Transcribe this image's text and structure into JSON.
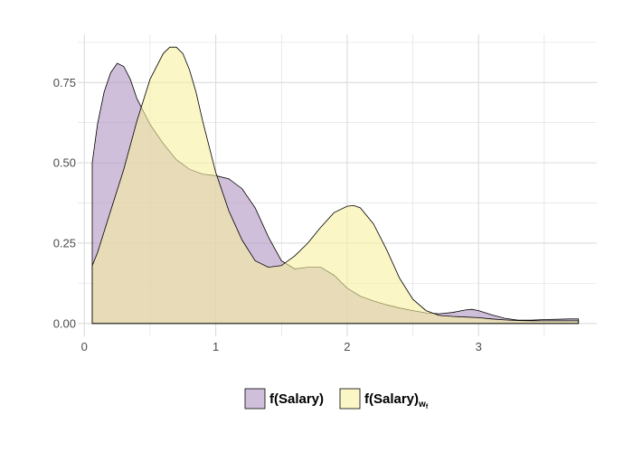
{
  "chart_data": {
    "type": "area",
    "title": "",
    "xlabel": "",
    "ylabel": "",
    "xlim": [
      -0.05,
      3.9
    ],
    "ylim": [
      -0.04,
      0.9
    ],
    "x_ticks": [
      0,
      1,
      2,
      3
    ],
    "x_tick_labels": [
      "0",
      "1",
      "2",
      "3"
    ],
    "y_ticks": [
      0.0,
      0.25,
      0.5,
      0.75
    ],
    "y_tick_labels": [
      "0.00",
      "0.25",
      "0.50",
      "0.75"
    ],
    "grid": true,
    "legend_position": "bottom",
    "series": [
      {
        "name": "f(Salary)",
        "legend_sub": "",
        "fill": "#b195c1",
        "x": [
          0.06,
          0.1,
          0.15,
          0.2,
          0.25,
          0.3,
          0.35,
          0.4,
          0.5,
          0.6,
          0.7,
          0.8,
          0.9,
          1.0,
          1.1,
          1.2,
          1.3,
          1.4,
          1.5,
          1.6,
          1.7,
          1.8,
          1.9,
          2.0,
          2.1,
          2.2,
          2.3,
          2.4,
          2.5,
          2.6,
          2.7,
          2.8,
          2.9,
          2.95,
          3.0,
          3.1,
          3.2,
          3.3,
          3.4,
          3.5,
          3.6,
          3.7,
          3.76
        ],
        "values": [
          0.5,
          0.62,
          0.72,
          0.78,
          0.81,
          0.8,
          0.76,
          0.7,
          0.62,
          0.56,
          0.51,
          0.48,
          0.465,
          0.46,
          0.45,
          0.42,
          0.36,
          0.27,
          0.195,
          0.17,
          0.175,
          0.175,
          0.15,
          0.11,
          0.085,
          0.07,
          0.058,
          0.048,
          0.04,
          0.033,
          0.03,
          0.034,
          0.042,
          0.044,
          0.04,
          0.027,
          0.016,
          0.01,
          0.01,
          0.012,
          0.013,
          0.014,
          0.014
        ]
      },
      {
        "name": "f(Salary)",
        "legend_sub": "w",
        "legend_sub2": "f",
        "fill": "#f7f0a0",
        "x": [
          0.06,
          0.1,
          0.2,
          0.3,
          0.4,
          0.5,
          0.6,
          0.65,
          0.7,
          0.75,
          0.8,
          0.85,
          0.9,
          1.0,
          1.1,
          1.2,
          1.3,
          1.4,
          1.5,
          1.6,
          1.7,
          1.8,
          1.9,
          2.0,
          2.05,
          2.1,
          2.2,
          2.3,
          2.4,
          2.5,
          2.6,
          2.7,
          2.8,
          2.9,
          3.0,
          3.1,
          3.2,
          3.3,
          3.4,
          3.5,
          3.6,
          3.7,
          3.76
        ],
        "values": [
          0.18,
          0.22,
          0.35,
          0.48,
          0.63,
          0.76,
          0.84,
          0.86,
          0.86,
          0.84,
          0.79,
          0.72,
          0.63,
          0.47,
          0.35,
          0.26,
          0.195,
          0.175,
          0.18,
          0.21,
          0.25,
          0.3,
          0.345,
          0.365,
          0.367,
          0.36,
          0.31,
          0.23,
          0.14,
          0.075,
          0.04,
          0.025,
          0.022,
          0.02,
          0.018,
          0.014,
          0.011,
          0.009,
          0.008,
          0.008,
          0.008,
          0.008,
          0.008
        ]
      }
    ]
  }
}
